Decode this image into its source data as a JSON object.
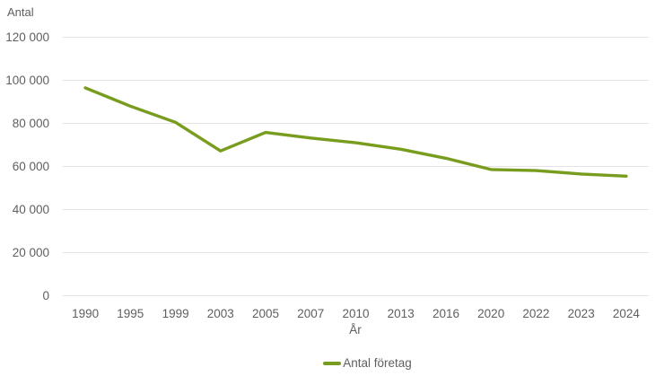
{
  "chart_data": {
    "type": "line",
    "title": "",
    "ylabel": "Antal",
    "xlabel": "År",
    "categories": [
      "1990",
      "1995",
      "1999",
      "2003",
      "2005",
      "2007",
      "2010",
      "2013",
      "2016",
      "2020",
      "2022",
      "2023",
      "2024"
    ],
    "series": [
      {
        "name": "Antal företag",
        "values": [
          96500,
          88000,
          80500,
          67200,
          75800,
          73200,
          71000,
          68000,
          63800,
          58600,
          58100,
          56500,
          55500
        ]
      }
    ],
    "ylim": [
      0,
      120000
    ],
    "ytick_step": 20000,
    "yticks": [
      {
        "value": 120000,
        "label": "120 000"
      },
      {
        "value": 100000,
        "label": "100 000"
      },
      {
        "value": 80000,
        "label": "80 000"
      },
      {
        "value": 60000,
        "label": "60 000"
      },
      {
        "value": 40000,
        "label": "40 000"
      },
      {
        "value": 20000,
        "label": "20 000"
      },
      {
        "value": 0,
        "label": "0"
      }
    ],
    "grid": "horizontal-only",
    "legend": {
      "position": "bottom-center",
      "entries": [
        "Antal företag"
      ]
    },
    "colors": {
      "line": "#789d1e",
      "grid": "#e3e3e3",
      "text": "#5f5f5f",
      "background": "#ffffff"
    }
  }
}
